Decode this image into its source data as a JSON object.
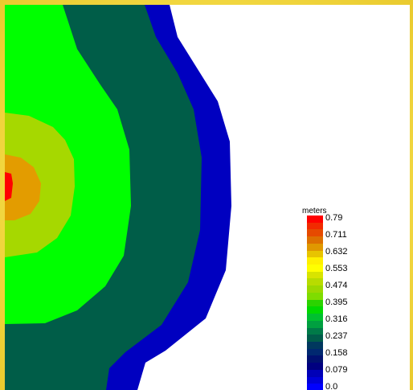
{
  "legend": {
    "unit": "meters",
    "labels": [
      "0.79",
      "0.711",
      "0.632",
      "0.553",
      "0.474",
      "0.395",
      "0.316",
      "0.237",
      "0.158",
      "0.079",
      "0.0"
    ],
    "swatch_colors": [
      "#ff0000",
      "#f22a00",
      "#e64a00",
      "#dd7000",
      "#e09800",
      "#e8c400",
      "#fff000",
      "#ffff00",
      "#d8e400",
      "#b8dc00",
      "#9cd800",
      "#7fdc00",
      "#2bd300",
      "#00d800",
      "#00c030",
      "#00a040",
      "#007a48",
      "#005c4a",
      "#00385e",
      "#002870",
      "#001070",
      "#000080",
      "#0000b8",
      "#0000d8",
      "#0000ff"
    ]
  },
  "contour_colors": {
    "red": "#ff0000",
    "orange": "#e39c00",
    "yellow_green": "#a6d800",
    "green": "#00ff00",
    "dark_green": "#005d48",
    "blue": "#0000c0",
    "background": "#ffffff"
  },
  "frame_color": "#f1d63f"
}
